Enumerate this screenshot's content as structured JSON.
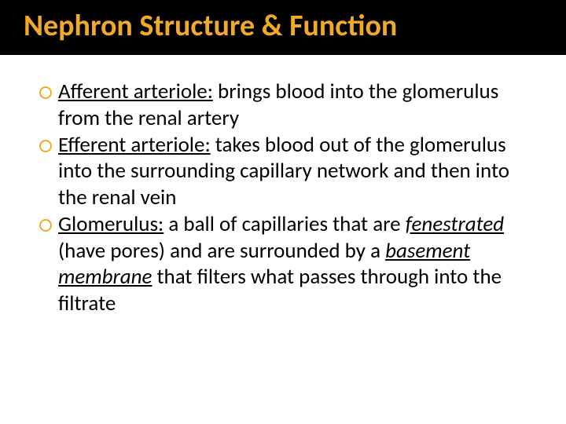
{
  "title": "Nephron Structure & Function",
  "colors": {
    "title_bg": "#000000",
    "title_text": "#f0a929",
    "body_text": "#000000",
    "bullet_ring": "#f0a929",
    "page_bg": "#ffffff"
  },
  "typography": {
    "title_fontsize": 38,
    "title_weight": 600,
    "body_fontsize": 27,
    "body_lineheight": 1.25,
    "font_family": "Calibri"
  },
  "bullets": [
    {
      "term": "Afferent arteriole:",
      "rest": " brings blood into the glomerulus from the renal artery"
    },
    {
      "term": "Efferent arteriole:",
      "rest": " takes blood out of the glomerulus into the surrounding capillary network and then into the renal vein"
    },
    {
      "term": "Glomerulus:",
      "rest_before": " a ball of capillaries that are ",
      "italic1": "fenestrated",
      "rest_mid": " (have pores) and are surrounded by a ",
      "italic2": "basement membrane",
      "rest_after": " that filters what passes through into the filtrate"
    }
  ]
}
